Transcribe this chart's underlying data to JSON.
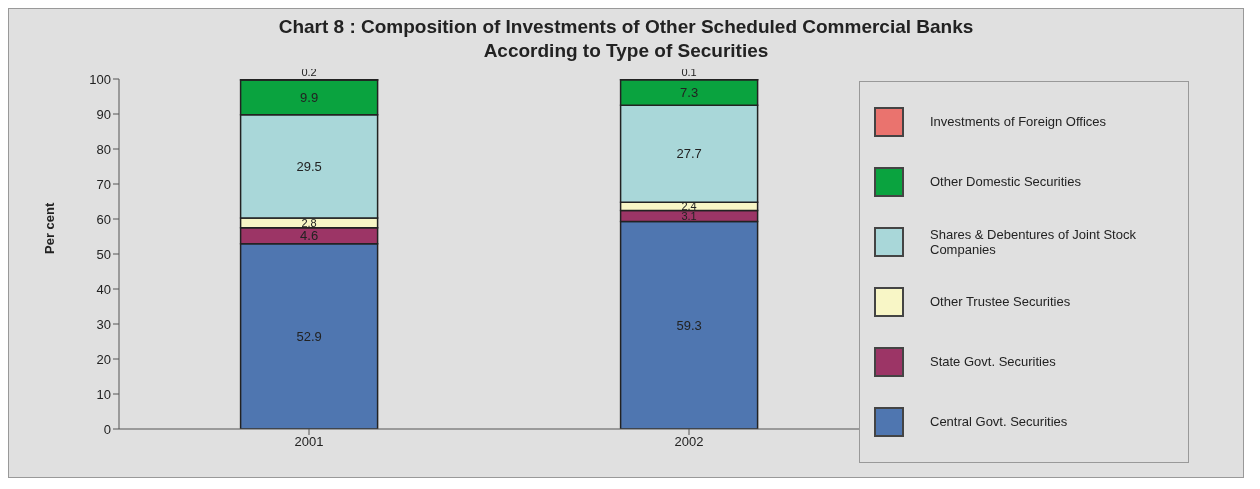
{
  "chart_data": {
    "type": "bar",
    "title": "Chart 8 : Composition of Investments of Other Scheduled Commercial Banks\nAccording to Type of Securities",
    "ylabel": "Per cent",
    "categories": [
      "2001",
      "2002"
    ],
    "stacked": true,
    "data_labels": true,
    "ylim": [
      0,
      100
    ],
    "yticks": [
      0,
      10,
      20,
      30,
      40,
      50,
      60,
      70,
      80,
      90,
      100
    ],
    "grid": false,
    "legend": "right",
    "series": [
      {
        "name": "Central Govt. Securities",
        "color": "#4f76b0",
        "values": [
          52.9,
          59.3
        ]
      },
      {
        "name": "State Govt. Securities",
        "color": "#9c3566",
        "values": [
          4.6,
          3.1
        ]
      },
      {
        "name": "Other Trustee Securities",
        "color": "#f8f6c6",
        "values": [
          2.8,
          2.4
        ]
      },
      {
        "name": "Shares & Debentures of Joint Stock Companies",
        "color": "#a9d7d9",
        "values": [
          29.5,
          27.7
        ]
      },
      {
        "name": "Other Domestic Securities",
        "color": "#0aa33f",
        "values": [
          9.9,
          7.3
        ]
      },
      {
        "name": "Investments of Foreign Offices",
        "color": "#ea736e",
        "values": [
          0.2,
          0.1
        ]
      }
    ]
  }
}
